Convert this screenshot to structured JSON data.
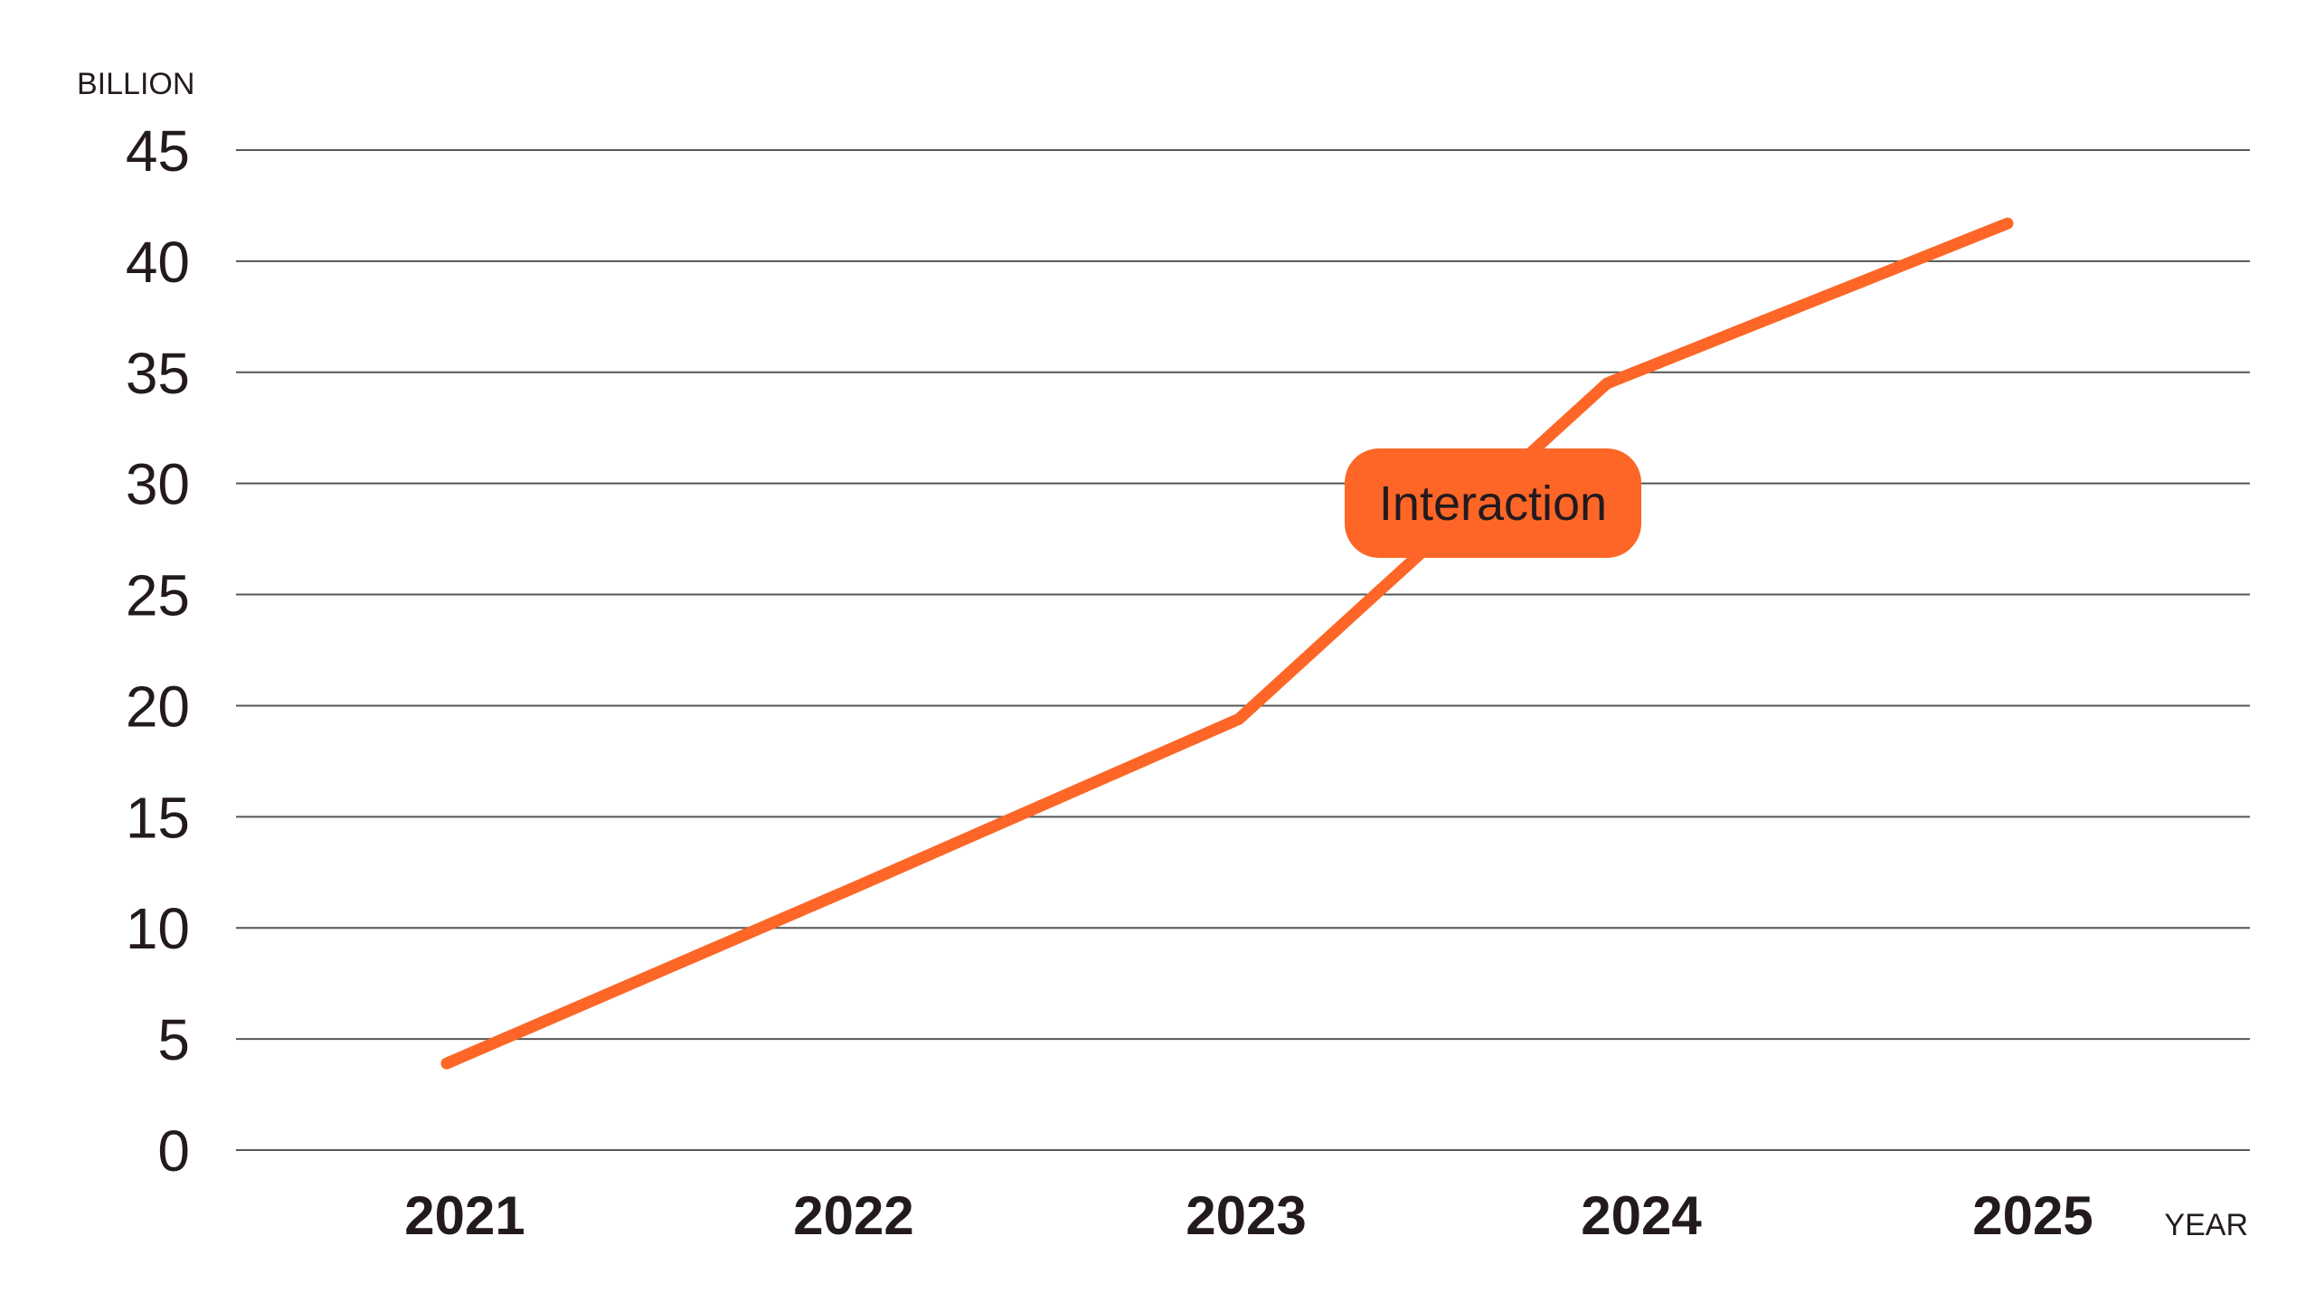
{
  "chart_data": {
    "type": "line",
    "categories": [
      "2021",
      "2022",
      "2023",
      "2024",
      "2025"
    ],
    "series": [
      {
        "values": [
          3.9,
          11.8,
          19.4,
          34.5,
          41.7
        ]
      }
    ],
    "ylabel": "BILLION",
    "xlabel": "YEAR",
    "ylim": [
      0,
      45
    ],
    "yticks": [
      0,
      5,
      10,
      15,
      20,
      25,
      30,
      35,
      40,
      45
    ],
    "grid": true,
    "line_color": "#fd6626",
    "annotation": {
      "text": "Interaction",
      "background": "#fd6626"
    }
  }
}
